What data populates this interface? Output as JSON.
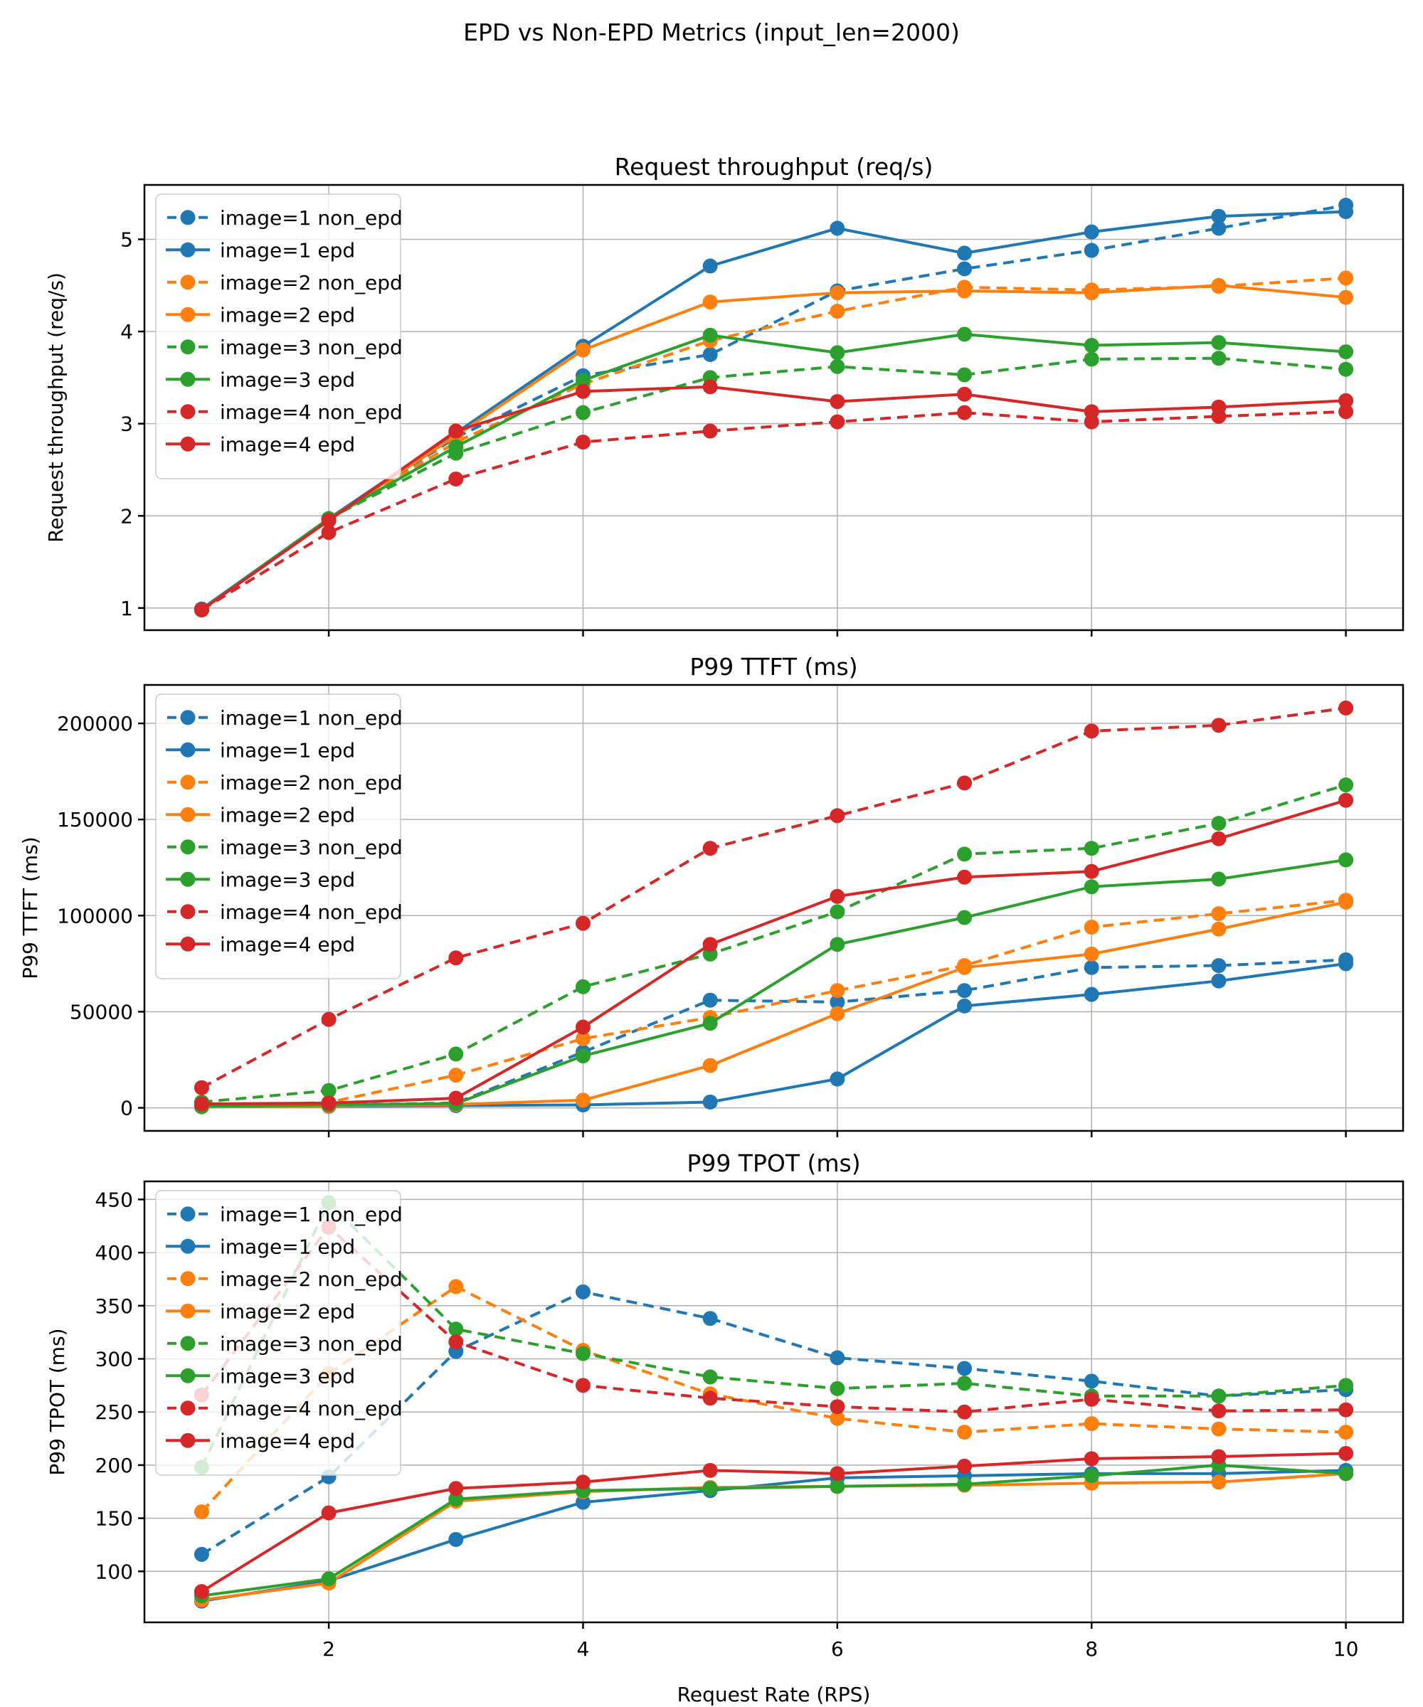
{
  "figure": {
    "suptitle": "EPD vs Non-EPD Metrics (input_len=2000)",
    "xlabel": "Request Rate (RPS)",
    "background": "#ffffff",
    "grid_color": "#b0b0b0",
    "spine_color": "#000000",
    "legend_location": "upper left",
    "palette": {
      "image1": "#1f77b4",
      "image2": "#ff7f0e",
      "image3": "#2ca02c",
      "image4": "#d62728"
    },
    "legend_labels": [
      "image=1 non_epd",
      "image=1 epd",
      "image=2 non_epd",
      "image=2 epd",
      "image=3 non_epd",
      "image=3 epd",
      "image=4 non_epd",
      "image=4 epd"
    ]
  },
  "chart_data": [
    {
      "type": "line",
      "title": "Request throughput (req/s)",
      "ylabel": "Request throughput (req/s)",
      "x": [
        1,
        2,
        3,
        4,
        5,
        6,
        7,
        8,
        9,
        10
      ],
      "xlim": [
        0.55,
        10.45
      ],
      "ylim": [
        0.76,
        5.59
      ],
      "xticks": [
        2,
        4,
        6,
        8,
        10
      ],
      "xtick_labels": [
        "2",
        "4",
        "6",
        "8",
        "10"
      ],
      "yticks": [
        1,
        2,
        3,
        4,
        5
      ],
      "ytick_labels": [
        "1",
        "2",
        "3",
        "4",
        "5"
      ],
      "grid": true,
      "series": [
        {
          "name": "image=1 non_epd",
          "color": "#1f77b4",
          "style": "dashed",
          "values": [
            0.98,
            1.97,
            2.85,
            3.52,
            3.75,
            4.44,
            4.68,
            4.88,
            5.12,
            5.37
          ]
        },
        {
          "name": "image=1 epd",
          "color": "#1f77b4",
          "style": "solid",
          "values": [
            0.99,
            1.97,
            2.9,
            3.84,
            4.71,
            5.12,
            4.85,
            5.08,
            5.25,
            5.3
          ]
        },
        {
          "name": "image=2 non_epd",
          "color": "#ff7f0e",
          "style": "dashed",
          "values": [
            0.98,
            1.96,
            2.8,
            3.43,
            3.9,
            4.22,
            4.48,
            4.45,
            4.49,
            4.58
          ]
        },
        {
          "name": "image=2 epd",
          "color": "#ff7f0e",
          "style": "solid",
          "values": [
            0.98,
            1.96,
            2.87,
            3.8,
            4.32,
            4.42,
            4.44,
            4.42,
            4.5,
            4.37
          ]
        },
        {
          "name": "image=3 non_epd",
          "color": "#2ca02c",
          "style": "dashed",
          "values": [
            0.98,
            1.97,
            2.68,
            3.12,
            3.5,
            3.62,
            3.53,
            3.7,
            3.71,
            3.59
          ]
        },
        {
          "name": "image=3 epd",
          "color": "#2ca02c",
          "style": "solid",
          "values": [
            0.98,
            1.97,
            2.75,
            3.47,
            3.96,
            3.77,
            3.97,
            3.85,
            3.88,
            3.78
          ]
        },
        {
          "name": "image=4 non_epd",
          "color": "#d62728",
          "style": "dashed",
          "values": [
            0.98,
            1.82,
            2.4,
            2.8,
            2.92,
            3.02,
            3.12,
            3.02,
            3.08,
            3.13
          ]
        },
        {
          "name": "image=4 epd",
          "color": "#d62728",
          "style": "solid",
          "values": [
            0.98,
            1.95,
            2.92,
            3.35,
            3.4,
            3.24,
            3.32,
            3.13,
            3.18,
            3.25
          ]
        }
      ]
    },
    {
      "type": "line",
      "title": "P99 TTFT (ms)",
      "ylabel": "P99 TTFT (ms)",
      "x": [
        1,
        2,
        3,
        4,
        5,
        6,
        7,
        8,
        9,
        10
      ],
      "xlim": [
        0.55,
        10.45
      ],
      "ylim": [
        -12000,
        220000
      ],
      "xticks": [
        2,
        4,
        6,
        8,
        10
      ],
      "xtick_labels": [
        "2",
        "4",
        "6",
        "8",
        "10"
      ],
      "yticks": [
        0,
        50000,
        100000,
        150000,
        200000
      ],
      "ytick_labels": [
        "0",
        "50000",
        "100000",
        "150000",
        "200000"
      ],
      "grid": true,
      "series": [
        {
          "name": "image=1 non_epd",
          "color": "#1f77b4",
          "style": "dashed",
          "values": [
            600,
            1500,
            2500,
            29000,
            56000,
            55000,
            61000,
            73000,
            74000,
            77000
          ]
        },
        {
          "name": "image=1 epd",
          "color": "#1f77b4",
          "style": "solid",
          "values": [
            500,
            800,
            1200,
            1500,
            3000,
            15000,
            53000,
            59000,
            66000,
            75000
          ]
        },
        {
          "name": "image=2 non_epd",
          "color": "#ff7f0e",
          "style": "dashed",
          "values": [
            900,
            2800,
            17000,
            36000,
            47000,
            61000,
            74000,
            94000,
            101000,
            108000
          ]
        },
        {
          "name": "image=2 epd",
          "color": "#ff7f0e",
          "style": "solid",
          "values": [
            500,
            1000,
            1800,
            4000,
            22000,
            49000,
            73000,
            80000,
            93000,
            107000
          ]
        },
        {
          "name": "image=3 non_epd",
          "color": "#2ca02c",
          "style": "dashed",
          "values": [
            3000,
            9000,
            28000,
            63000,
            80000,
            102000,
            132000,
            135000,
            148000,
            168000
          ]
        },
        {
          "name": "image=3 epd",
          "color": "#2ca02c",
          "style": "solid",
          "values": [
            800,
            1500,
            2200,
            27000,
            44000,
            85000,
            99000,
            115000,
            119000,
            129000
          ]
        },
        {
          "name": "image=4 non_epd",
          "color": "#d62728",
          "style": "dashed",
          "values": [
            10500,
            46000,
            78000,
            96000,
            135000,
            152000,
            169000,
            196000,
            199000,
            208000
          ]
        },
        {
          "name": "image=4 epd",
          "color": "#d62728",
          "style": "solid",
          "values": [
            2000,
            2500,
            5000,
            42000,
            85000,
            110000,
            120000,
            123000,
            140000,
            160000
          ]
        }
      ]
    },
    {
      "type": "line",
      "title": "P99 TPOT (ms)",
      "ylabel": "P99 TPOT (ms)",
      "x": [
        1,
        2,
        3,
        4,
        5,
        6,
        7,
        8,
        9,
        10
      ],
      "xlim": [
        0.55,
        10.45
      ],
      "ylim": [
        52,
        467
      ],
      "xticks": [
        2,
        4,
        6,
        8,
        10
      ],
      "xtick_labels": [
        "2",
        "4",
        "6",
        "8",
        "10"
      ],
      "yticks": [
        100,
        150,
        200,
        250,
        300,
        350,
        400,
        450
      ],
      "ytick_labels": [
        "100",
        "150",
        "200",
        "250",
        "300",
        "350",
        "400",
        "450"
      ],
      "grid": true,
      "series": [
        {
          "name": "image=1 non_epd",
          "color": "#1f77b4",
          "style": "dashed",
          "values": [
            116,
            189,
            307,
            363,
            338,
            301,
            291,
            279,
            265,
            271
          ]
        },
        {
          "name": "image=1 epd",
          "color": "#1f77b4",
          "style": "solid",
          "values": [
            72,
            91,
            130,
            165,
            176,
            188,
            190,
            192,
            192,
            195
          ]
        },
        {
          "name": "image=2 non_epd",
          "color": "#ff7f0e",
          "style": "dashed",
          "values": [
            156,
            286,
            368,
            308,
            267,
            244,
            231,
            239,
            234,
            231
          ]
        },
        {
          "name": "image=2 epd",
          "color": "#ff7f0e",
          "style": "solid",
          "values": [
            73,
            89,
            166,
            175,
            179,
            180,
            181,
            183,
            184,
            192
          ]
        },
        {
          "name": "image=3 non_epd",
          "color": "#2ca02c",
          "style": "dashed",
          "values": [
            198,
            447,
            328,
            305,
            283,
            272,
            277,
            265,
            265,
            275
          ]
        },
        {
          "name": "image=3 epd",
          "color": "#2ca02c",
          "style": "solid",
          "values": [
            77,
            93,
            168,
            176,
            178,
            180,
            182,
            190,
            200,
            192
          ]
        },
        {
          "name": "image=4 non_epd",
          "color": "#d62728",
          "style": "dashed",
          "values": [
            266,
            424,
            316,
            275,
            263,
            255,
            250,
            262,
            251,
            252
          ]
        },
        {
          "name": "image=4 epd",
          "color": "#d62728",
          "style": "solid",
          "values": [
            81,
            155,
            178,
            184,
            195,
            192,
            199,
            206,
            208,
            211
          ]
        }
      ]
    }
  ]
}
